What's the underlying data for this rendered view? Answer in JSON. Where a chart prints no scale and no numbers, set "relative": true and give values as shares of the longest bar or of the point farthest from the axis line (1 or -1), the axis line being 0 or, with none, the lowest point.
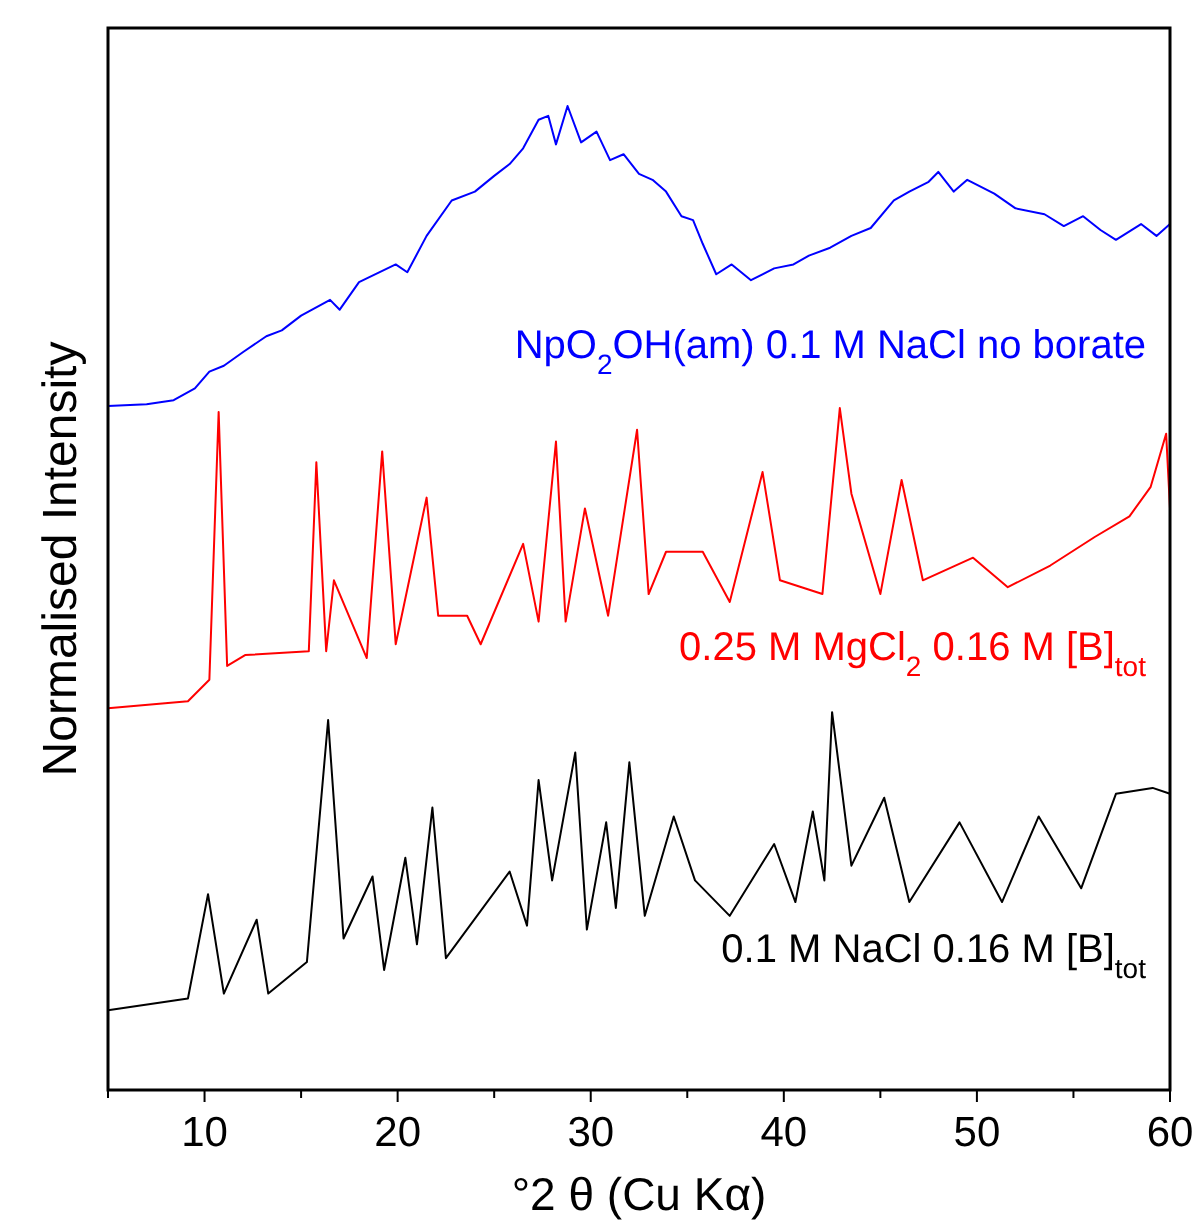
{
  "chart_data": {
    "type": "line",
    "relative": true,
    "xlabel": "°2 θ (Cu Kα)",
    "ylabel": "Normalised Intensity",
    "xlim": [
      5,
      60
    ],
    "xticks": [
      {
        "value": 5,
        "label": null
      },
      10,
      {
        "value": 15,
        "label": null
      },
      20,
      {
        "value": 25,
        "label": null
      },
      30,
      {
        "value": 35,
        "label": null
      },
      40,
      {
        "value": 45,
        "label": null
      },
      50,
      {
        "value": 55,
        "label": null
      },
      60
    ],
    "grid": false,
    "marker": "none",
    "line_style": "solid",
    "series": [
      {
        "name": "NpO$_{2}$OH(am) 0.1 M NaCl no borate",
        "color": "#0000ff",
        "x": [
          5,
          7,
          8.4,
          9.5,
          10.25,
          11,
          12,
          13.2,
          14,
          15,
          16.5,
          17,
          18,
          19.9,
          20.5,
          21.5,
          22.8,
          24,
          25,
          25.8,
          26.5,
          27.3,
          27.8,
          28.2,
          28.8,
          29.5,
          30.3,
          31,
          31.7,
          32.5,
          33.2,
          33.9,
          34.7,
          35.3,
          35.8,
          36.5,
          37.3,
          38.3,
          39.5,
          40.5,
          41.3,
          42.4,
          43.5,
          44.5,
          45.7,
          46.5,
          47.5,
          48,
          48.8,
          49.5,
          50.9,
          52,
          53.5,
          54.5,
          55.5,
          56.4,
          57.2,
          58.5,
          59.3,
          60
        ],
        "values": [
          0.695,
          0.697,
          0.701,
          0.713,
          0.73,
          0.736,
          0.75,
          0.766,
          0.772,
          0.787,
          0.803,
          0.793,
          0.821,
          0.839,
          0.831,
          0.868,
          0.904,
          0.913,
          0.929,
          0.941,
          0.957,
          0.986,
          0.99,
          0.961,
          1.0,
          0.963,
          0.974,
          0.945,
          0.951,
          0.931,
          0.925,
          0.913,
          0.888,
          0.884,
          0.86,
          0.829,
          0.839,
          0.823,
          0.835,
          0.839,
          0.848,
          0.856,
          0.868,
          0.876,
          0.904,
          0.913,
          0.923,
          0.933,
          0.913,
          0.925,
          0.911,
          0.896,
          0.89,
          0.878,
          0.888,
          0.874,
          0.864,
          0.88,
          0.868,
          0.88
        ]
      },
      {
        "name": "0.25 M MgCl$_{2}$ 0.16 M [B]$_{tot}$",
        "color": "#ff0000",
        "x": [
          5,
          9.14,
          10.25,
          10.73,
          11.17,
          12.1,
          15.4,
          15.79,
          16.3,
          16.7,
          18.4,
          19.2,
          19.9,
          21.5,
          22.1,
          23.6,
          24.3,
          26.5,
          27.3,
          28.2,
          28.7,
          29.7,
          30.9,
          32.4,
          33,
          33.9,
          35.8,
          37.2,
          38.9,
          39.8,
          42,
          42.9,
          43.5,
          45,
          46.1,
          47.2,
          49.8,
          51.6,
          53.8,
          56.1,
          57.9,
          59,
          59.8,
          60
        ],
        "values": [
          0.388,
          0.395,
          0.417,
          0.689,
          0.431,
          0.442,
          0.446,
          0.638,
          0.446,
          0.518,
          0.439,
          0.649,
          0.453,
          0.602,
          0.482,
          0.482,
          0.453,
          0.555,
          0.476,
          0.659,
          0.476,
          0.591,
          0.482,
          0.671,
          0.504,
          0.547,
          0.547,
          0.496,
          0.628,
          0.518,
          0.504,
          0.693,
          0.606,
          0.504,
          0.62,
          0.518,
          0.541,
          0.511,
          0.533,
          0.562,
          0.583,
          0.613,
          0.667,
          0.591
        ]
      },
      {
        "name": "0.1 M NaCl 0.16 M [B]$_{tot}$",
        "color": "#000000",
        "x": [
          5,
          9.14,
          10.18,
          11,
          12.7,
          13.3,
          15.3,
          16.4,
          17.2,
          18.7,
          19.3,
          20.4,
          21,
          21.8,
          22.5,
          25.8,
          26.7,
          27.3,
          28,
          29.2,
          29.8,
          30.8,
          31.3,
          32,
          32.8,
          34.3,
          35.4,
          37.2,
          39.5,
          40.6,
          41.5,
          42.1,
          42.5,
          43.5,
          45.2,
          46.5,
          49.1,
          51.3,
          53.2,
          55.4,
          57.2,
          59.1,
          60
        ],
        "values": [
          0.081,
          0.093,
          0.199,
          0.098,
          0.173,
          0.098,
          0.13,
          0.376,
          0.154,
          0.217,
          0.122,
          0.236,
          0.148,
          0.287,
          0.134,
          0.222,
          0.167,
          0.315,
          0.213,
          0.343,
          0.163,
          0.272,
          0.185,
          0.333,
          0.177,
          0.278,
          0.213,
          0.177,
          0.25,
          0.191,
          0.283,
          0.213,
          0.384,
          0.228,
          0.297,
          0.191,
          0.272,
          0.191,
          0.278,
          0.205,
          0.301,
          0.307,
          0.301
        ]
      }
    ]
  }
}
